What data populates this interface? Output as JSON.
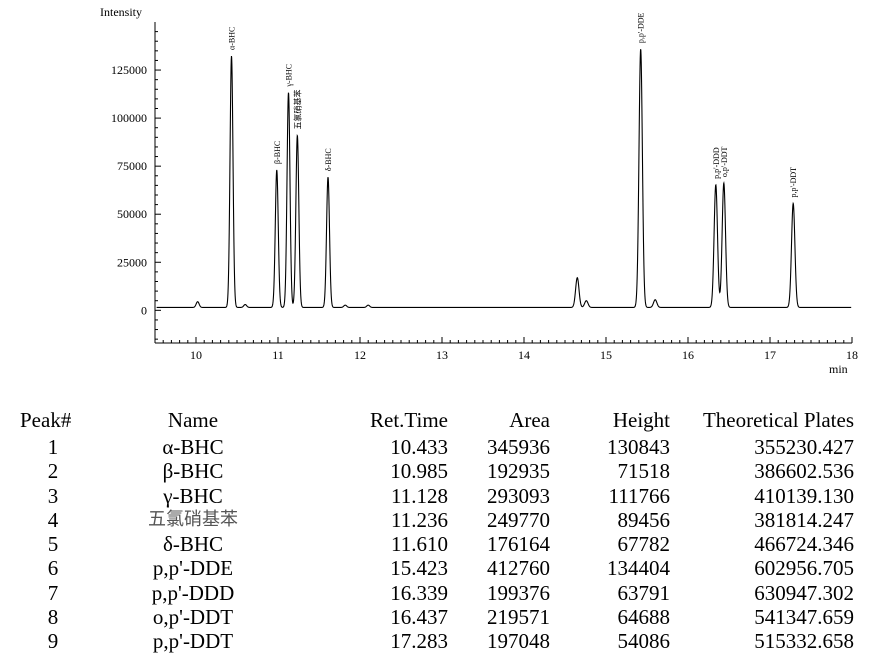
{
  "chart_data": {
    "type": "line",
    "ylabel": "Intensity",
    "xlabel": "min",
    "xlim": [
      9.5,
      18
    ],
    "ylim": [
      -17000,
      150000
    ],
    "y_ticks": [
      0,
      25000,
      50000,
      75000,
      100000,
      125000
    ],
    "y_tick_labels": [
      "0",
      "25000",
      "50000",
      "75000",
      "100000",
      "125000"
    ],
    "x_ticks": [
      10,
      11,
      12,
      13,
      14,
      15,
      16,
      17,
      18
    ],
    "x_tick_labels": [
      "10",
      "11",
      "12",
      "13",
      "14",
      "15",
      "16",
      "17",
      "18"
    ],
    "baseline": 1500,
    "peaks": [
      {
        "label": "α-BHC",
        "x": 10.433,
        "height": 130843
      },
      {
        "label": "β-BHC",
        "x": 10.985,
        "height": 71518
      },
      {
        "label": "γ-BHC",
        "x": 11.128,
        "height": 111766
      },
      {
        "label": "五氯硝基苯",
        "x": 11.236,
        "height": 89456
      },
      {
        "label": "δ-BHC",
        "x": 11.61,
        "height": 67782
      },
      {
        "label": "p,p'-DDE",
        "x": 15.423,
        "height": 134404
      },
      {
        "label": "p,p'-DDD",
        "x": 16.339,
        "height": 63791
      },
      {
        "label": "o,p'-DDT",
        "x": 16.437,
        "height": 64688
      },
      {
        "label": "p,p'-DDT",
        "x": 17.283,
        "height": 54086
      }
    ],
    "minor_peaks": [
      {
        "x": 10.02,
        "height": 3000
      },
      {
        "x": 10.6,
        "height": 1500
      },
      {
        "x": 11.82,
        "height": 1200
      },
      {
        "x": 12.1,
        "height": 1200
      },
      {
        "x": 14.65,
        "height": 15500
      },
      {
        "x": 14.76,
        "height": 3500
      },
      {
        "x": 15.6,
        "height": 4000
      }
    ]
  },
  "table": {
    "headers": [
      "Peak#",
      "Name",
      "Ret.Time",
      "Area",
      "Height",
      "Theoretical Plates"
    ],
    "rows": [
      [
        "1",
        "α-BHC",
        "10.433",
        "345936",
        "130843",
        "355230.427"
      ],
      [
        "2",
        "β-BHC",
        "10.985",
        "192935",
        "71518",
        "386602.536"
      ],
      [
        "3",
        "γ-BHC",
        "11.128",
        "293093",
        "111766",
        "410139.130"
      ],
      [
        "4",
        "五氯硝基苯",
        "11.236",
        "249770",
        "89456",
        "381814.247"
      ],
      [
        "5",
        "δ-BHC",
        "11.610",
        "176164",
        "67782",
        "466724.346"
      ],
      [
        "6",
        "p,p'-DDE",
        "15.423",
        "412760",
        "134404",
        "602956.705"
      ],
      [
        "7",
        "p,p'-DDD",
        "16.339",
        "199376",
        "63791",
        "630947.302"
      ],
      [
        "8",
        "o,p'-DDT",
        "16.437",
        "219571",
        "64688",
        "541347.659"
      ],
      [
        "9",
        "p,p'-DDT",
        "17.283",
        "197048",
        "54086",
        "515332.658"
      ]
    ]
  }
}
